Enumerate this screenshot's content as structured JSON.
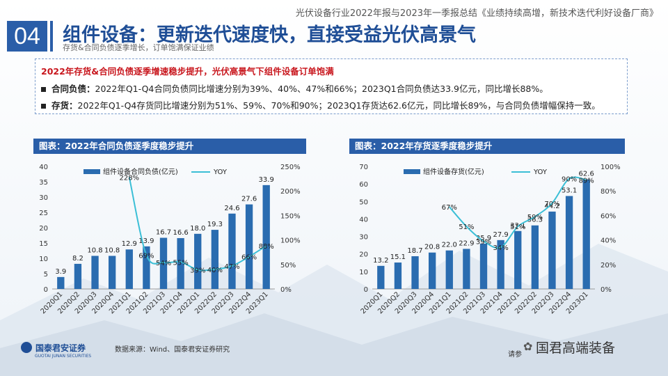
{
  "header": {
    "report_title": "光伏设备行业2022年报与2023年一季报总结《业绩持续高增，新技术迭代利好设备厂商》",
    "section_number": "04",
    "main_title": "组件设备：更新迭代速度快，直接受益光伏高景气",
    "sub_title": "存货&合同负债逐季增长，订单饱满保证业绩"
  },
  "summary": {
    "title": "2022年存货&合同负债逐季增速稳步提升，光伏高景气下组件设备订单饱满",
    "bullets": [
      {
        "label": "合同负债：",
        "text": "2022年Q1-Q4合同负债同比增速分别为39%、40%、47%和66%；2023Q1合同负债达33.9亿元，同比增长88%。"
      },
      {
        "label": "存货：",
        "text": "2022年Q1-Q4存货同比增速分别为51%、59%、70%和90%；2023Q1存货达62.6亿元，同比增长89%，与合同负债增幅保持一致。"
      }
    ]
  },
  "chart_data": [
    {
      "type": "bar",
      "title": "图表：2022年合同负债逐季度稳步提升",
      "categories": [
        "2020Q1",
        "2020Q2",
        "2020Q3",
        "2020Q4",
        "2021Q1",
        "2021Q2",
        "2021Q3",
        "2021Q4",
        "2022Q1",
        "2022Q2",
        "2022Q3",
        "2022Q4",
        "2023Q1"
      ],
      "series": [
        {
          "name": "组件设备合同负债(亿元)",
          "type": "bar",
          "axis": "left",
          "values": [
            3.9,
            8.2,
            10.8,
            10.8,
            12.9,
            13.9,
            16.7,
            16.6,
            18.0,
            19.3,
            24.6,
            27.6,
            33.9
          ],
          "labels": [
            "3.9",
            "8.2",
            "10.8",
            "10.8",
            "12.9",
            "13.9",
            "16.7",
            "16.6",
            "18.0",
            "19.3",
            "24.6",
            "27.6",
            "33.9"
          ]
        },
        {
          "name": "YOY",
          "type": "line",
          "axis": "right",
          "values": [
            null,
            null,
            null,
            null,
            228,
            69,
            54,
            55,
            39,
            40,
            47,
            66,
            88
          ],
          "labels": [
            "",
            "",
            "",
            "",
            "228%",
            "69%",
            "54%",
            "55%",
            "39%",
            "40%",
            "47%",
            "66%",
            "88%"
          ]
        }
      ],
      "ylim": [
        0,
        40
      ],
      "yticks": [
        "0",
        "5",
        "10",
        "15",
        "20",
        "25",
        "30",
        "35",
        "40"
      ],
      "y2lim": [
        0,
        250
      ],
      "y2ticks": [
        "0%",
        "50%",
        "100%",
        "150%",
        "200%",
        "250%"
      ],
      "legend": "top"
    },
    {
      "type": "bar",
      "title": "图表：2022年存货逐季度稳步提升",
      "categories": [
        "2020Q1",
        "2020Q2",
        "2020Q3",
        "2020Q4",
        "2021Q1",
        "2021Q2",
        "2021Q3",
        "2021Q4",
        "2022Q1",
        "2022Q2",
        "2022Q3",
        "2022Q4",
        "2023Q1"
      ],
      "series": [
        {
          "name": "组件设备存货(亿元)",
          "type": "bar",
          "axis": "left",
          "values": [
            13.2,
            15.1,
            18.7,
            20.8,
            22.0,
            22.9,
            25.9,
            27.9,
            33.1,
            36.3,
            44.2,
            53.1,
            62.6
          ],
          "labels": [
            "13.2",
            "15.1",
            "18.7",
            "20.8",
            "22.0",
            "22.9",
            "25.9",
            "27.9",
            "33.1",
            "36.3",
            "44.2",
            "53.1",
            "62.6"
          ]
        },
        {
          "name": "YOY",
          "type": "line",
          "axis": "right",
          "values": [
            null,
            null,
            null,
            null,
            67,
            51,
            39,
            34,
            51,
            59,
            70,
            90,
            89
          ],
          "labels": [
            "",
            "",
            "",
            "",
            "67%",
            "51%",
            "39%",
            "34%",
            "51%",
            "59%",
            "70%",
            "90%",
            "89%"
          ]
        }
      ],
      "ylim": [
        0,
        70
      ],
      "yticks": [
        "0",
        "10",
        "20",
        "30",
        "40",
        "50",
        "60",
        "70"
      ],
      "y2lim": [
        0,
        100
      ],
      "y2ticks": [
        "0%",
        "20%",
        "40%",
        "60%",
        "80%",
        "100%"
      ],
      "legend": "top"
    }
  ],
  "footer": {
    "logo_text": "国泰君安证券",
    "logo_en": "GUOTAI JUNAN SECURITIES",
    "source": "数据来源：Wind、国泰君安证券研究",
    "note": "请参",
    "watermark": "国君高端装备"
  },
  "colors": {
    "bar": "#2a6cb0",
    "line": "#3bbfd6",
    "accent": "#2a5ea8",
    "title_red": "#c8161d"
  }
}
